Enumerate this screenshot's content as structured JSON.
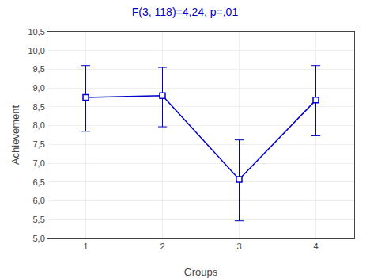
{
  "chart_data": {
    "type": "line",
    "title": "F(3, 118)=4,24, p=,01",
    "xlabel": "Groups",
    "ylabel": "Achievement",
    "x": [
      1,
      2,
      3,
      4
    ],
    "values": [
      8.75,
      8.8,
      6.57,
      8.68
    ],
    "yerr_upper": [
      9.6,
      9.55,
      7.62,
      9.6
    ],
    "yerr_lower": [
      7.85,
      7.97,
      5.47,
      7.73
    ],
    "xlim": [
      0.5,
      4.5
    ],
    "xticks": [
      1,
      2,
      3,
      4
    ],
    "ylim": [
      5.0,
      10.5
    ],
    "yticks": [
      {
        "value": 5.0,
        "label": "5,0"
      },
      {
        "value": 5.5,
        "label": "5,5"
      },
      {
        "value": 6.0,
        "label": "6,0"
      },
      {
        "value": 6.5,
        "label": "6,5"
      },
      {
        "value": 7.0,
        "label": "7,0"
      },
      {
        "value": 7.5,
        "label": "7,5"
      },
      {
        "value": 8.0,
        "label": "8,0"
      },
      {
        "value": 8.5,
        "label": "8,5"
      },
      {
        "value": 9.0,
        "label": "9,0"
      },
      {
        "value": 9.5,
        "label": "9,5"
      },
      {
        "value": 10.0,
        "label": "10,0"
      },
      {
        "value": 10.5,
        "label": "10,5"
      }
    ],
    "color": "#0000cc",
    "marker": "square",
    "line_style": "solid",
    "grid": true
  }
}
